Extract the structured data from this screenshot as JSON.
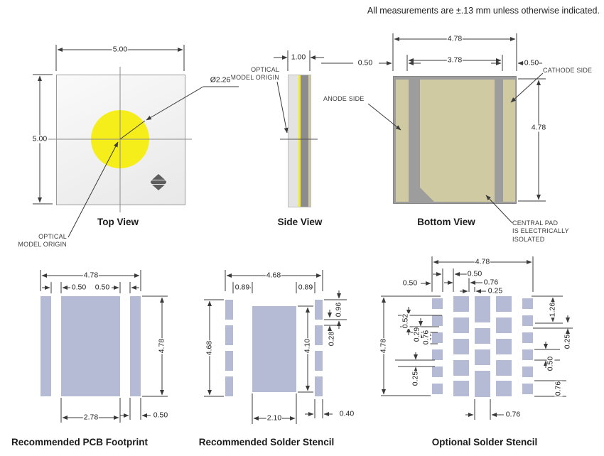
{
  "note": "All measurements are ±.13 mm unless otherwise indicated.",
  "top_view": {
    "title": "Top View",
    "dim_top": "5.00",
    "dim_left": "5.00",
    "dim_circle": "Ø2.26",
    "origin_line1": "OPTICAL",
    "origin_line2": "MODEL ORIGIN"
  },
  "side_view": {
    "title": "Side View",
    "dim_top": "1.00",
    "origin_line1": "OPTICAL",
    "origin_line2": "MODEL ORIGIN"
  },
  "bottom_view": {
    "title": "Bottom View",
    "dim_top": "4.78",
    "dim_inner": "3.78",
    "dim_pad_left": "0.50",
    "dim_pad_right": "0.50",
    "dim_height": "4.78",
    "anode": "ANODE SIDE",
    "cathode": "CATHODE SIDE",
    "central1": "CENTRAL PAD",
    "central2": "IS ELECTRICALLY",
    "central3": "ISOLATED"
  },
  "footprint": {
    "title": "Recommended PCB Footprint",
    "dim_top": "4.78",
    "dim_gap_left": "0.50",
    "dim_gap_right": "0.50",
    "dim_height": "4.78",
    "dim_center": "2.78",
    "dim_pad": "0.50"
  },
  "stencil": {
    "title": "Recommended Solder Stencil",
    "dim_top": "4.68",
    "dim_gap_left": "0.89",
    "dim_gap_right": "0.89",
    "dim_height": "4.68",
    "dim_center_h": "4.10",
    "dim_sq_h": "0.96",
    "dim_sq_gap": "0.28",
    "dim_center_w": "2.10",
    "dim_sq_w": "0.40"
  },
  "optional": {
    "title": "Optional Solder Stencil",
    "dim_top": "4.78",
    "dim_gap1": "0.50",
    "dim_col2": "0.76",
    "dim_gap2": "0.25",
    "dim_col1": "0.50",
    "dim_height": "4.78",
    "dim_l1": "0.52",
    "dim_l2": "0.29",
    "dim_l3": "0.76",
    "dim_l4": "0.25",
    "dim_r1": "1.26",
    "dim_r2": "0.25",
    "dim_r3": "0.50",
    "dim_r4": "0.76",
    "dim_bottom": "0.76"
  },
  "colors": {
    "emitter_yellow": "#f6ee1a",
    "pad_lavender": "#b5bad5",
    "pad_khaki": "#d0caa2",
    "body_gray": "#9d9d9d",
    "line": "#3a3a3a"
  }
}
